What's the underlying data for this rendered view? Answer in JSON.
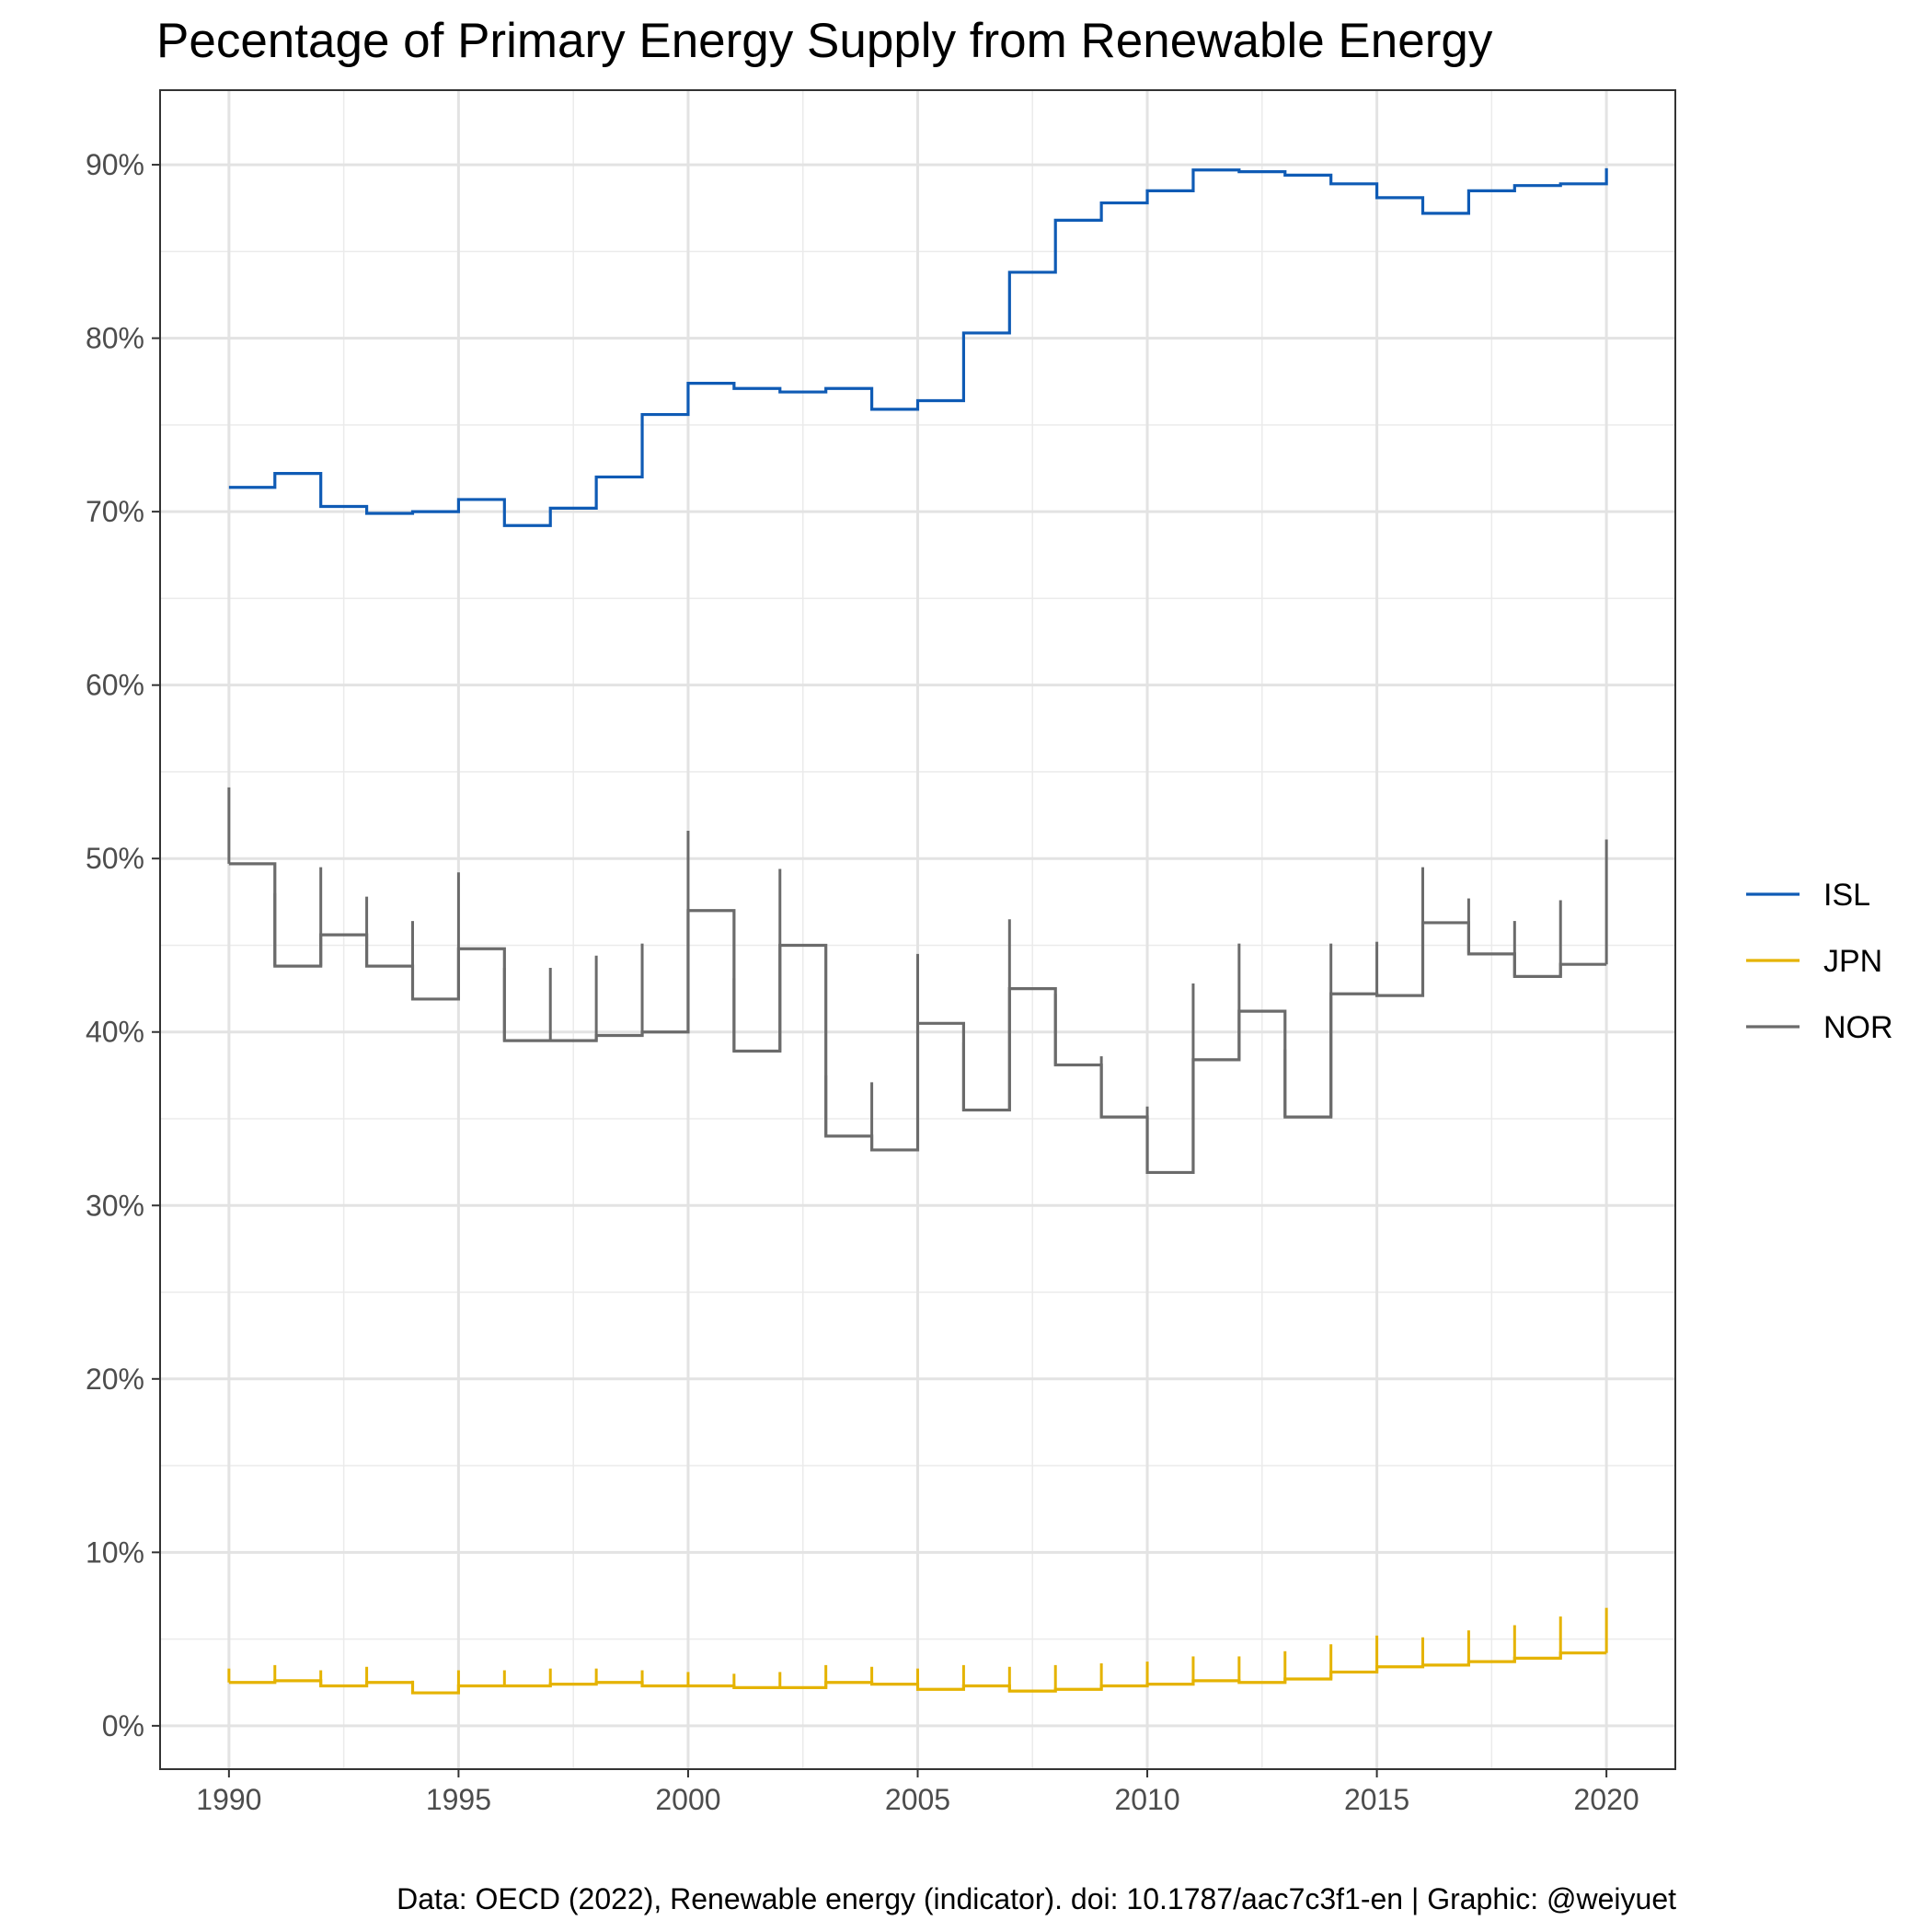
{
  "chart_data": {
    "type": "step-line",
    "title": "Pecentage of Primary Energy Supply from Renewable Energy",
    "caption": "Data: OECD (2022), Renewable energy (indicator). doi: 10.1787/aac7c3f1-en | Graphic: @weiyuet",
    "xlabel": "",
    "ylabel": "",
    "xlim": [
      1988.5,
      2021.5
    ],
    "ylim": [
      -2.5,
      94.3
    ],
    "x_ticks": [
      1990,
      1995,
      2000,
      2005,
      2010,
      2015,
      2020
    ],
    "x_tick_labels": [
      "1990",
      "1995",
      "2000",
      "2005",
      "2010",
      "2015",
      "2020"
    ],
    "y_ticks": [
      0,
      10,
      20,
      30,
      40,
      50,
      60,
      70,
      80,
      90
    ],
    "y_tick_labels": [
      "0%",
      "10%",
      "20%",
      "30%",
      "40%",
      "50%",
      "60%",
      "70%",
      "80%",
      "90%"
    ],
    "grid": true,
    "legend_position": "right",
    "x": [
      1990,
      1991,
      1992,
      1993,
      1994,
      1995,
      1996,
      1997,
      1998,
      1999,
      2000,
      2001,
      2002,
      2003,
      2004,
      2005,
      2006,
      2007,
      2008,
      2009,
      2010,
      2011,
      2012,
      2013,
      2014,
      2015,
      2016,
      2017,
      2018,
      2019,
      2020
    ],
    "series": [
      {
        "name": "ISL",
        "color": "#0f5bb5",
        "values": [
          71.4,
          72.2,
          70.3,
          69.9,
          70.0,
          70.7,
          69.2,
          70.2,
          72.0,
          75.6,
          77.4,
          77.1,
          76.9,
          77.1,
          75.9,
          76.4,
          80.3,
          83.8,
          86.8,
          87.8,
          88.5,
          89.7,
          89.6,
          89.4,
          88.9,
          88.1,
          87.2,
          88.5,
          88.8,
          88.9,
          89.8
        ],
        "thin_values": []
      },
      {
        "name": "JPN",
        "color": "#e5b300",
        "values": [
          2.5,
          2.6,
          2.3,
          2.5,
          1.9,
          2.3,
          2.3,
          2.4,
          2.5,
          2.3,
          2.3,
          2.2,
          2.2,
          2.5,
          2.4,
          2.1,
          2.3,
          2.0,
          2.1,
          2.3,
          2.4,
          2.6,
          2.5,
          2.7,
          3.1,
          3.4,
          3.5,
          3.7,
          3.9,
          4.2,
          4.2
        ],
        "thin_values": [
          3.3,
          3.5,
          3.2,
          3.4,
          2.6,
          3.2,
          3.2,
          3.3,
          3.3,
          3.2,
          3.1,
          3.0,
          3.1,
          3.5,
          3.4,
          3.3,
          3.5,
          3.4,
          3.5,
          3.6,
          3.7,
          4.0,
          4.0,
          4.3,
          4.7,
          5.2,
          5.1,
          5.5,
          5.8,
          6.3,
          6.8
        ]
      },
      {
        "name": "NOR",
        "color": "#6b6b6b",
        "values": [
          49.7,
          43.8,
          45.6,
          43.8,
          41.9,
          44.8,
          39.5,
          39.5,
          39.8,
          40.0,
          47.0,
          38.9,
          45.0,
          34.0,
          33.2,
          40.5,
          35.5,
          42.5,
          38.1,
          35.1,
          31.9,
          38.4,
          41.2,
          35.1,
          42.2,
          42.1,
          46.3,
          44.5,
          43.2,
          43.9,
          43.9
        ],
        "thin_values": [
          54.1,
          48.0,
          49.5,
          47.8,
          46.4,
          49.2,
          43.7,
          43.7,
          44.4,
          45.1,
          51.6,
          43.1,
          49.4,
          37.5,
          37.1,
          44.5,
          39.4,
          46.5,
          42.2,
          38.6,
          35.7,
          42.8,
          45.1,
          39.0,
          45.1,
          45.2,
          49.5,
          47.7,
          46.4,
          47.6,
          51.1
        ]
      }
    ]
  }
}
